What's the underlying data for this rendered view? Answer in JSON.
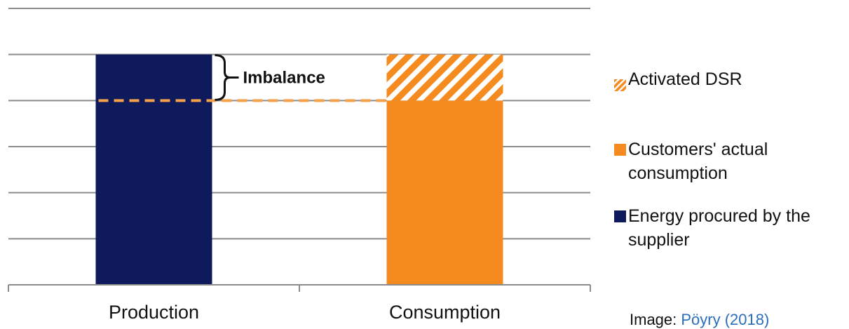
{
  "chart_data": {
    "type": "bar",
    "stacked": true,
    "categories": [
      "Production",
      "Consumption"
    ],
    "ylim": [
      0,
      6
    ],
    "grid": true,
    "gridlines": [
      1,
      2,
      3,
      4,
      5,
      6
    ],
    "series": [
      {
        "name": "Energy procured by the supplier",
        "values": [
          5,
          0
        ],
        "color": "#0e1a5c",
        "pattern": "solid"
      },
      {
        "name": "Customers' actual consumption",
        "values": [
          0,
          4
        ],
        "color": "#f58a1f",
        "pattern": "solid"
      },
      {
        "name": "Activated DSR",
        "values": [
          0,
          1
        ],
        "color": "#f58a1f",
        "pattern": "hatch"
      }
    ],
    "reference_line": {
      "value": 4,
      "color": "#f5a04a",
      "style": "dashed"
    },
    "annotation": {
      "text": "Imbalance",
      "from": 4,
      "to": 5
    },
    "legend_position": "right",
    "legend_order": [
      "Activated DSR",
      "Customers' actual consumption",
      "Energy procured by the supplier"
    ],
    "title": "",
    "xlabel": "",
    "ylabel": ""
  },
  "legend": {
    "items": [
      {
        "label": "Activated DSR",
        "color": "#f58a1f",
        "pattern": "hatch"
      },
      {
        "label": "Customers' actual\nconsumption",
        "color": "#f58a1f",
        "pattern": "solid"
      },
      {
        "label": "Energy procured by the\nsupplier",
        "color": "#0e1a5c",
        "pattern": "solid"
      }
    ]
  },
  "credit": {
    "prefix": "Image: ",
    "link": "Pöyry (2018)"
  }
}
